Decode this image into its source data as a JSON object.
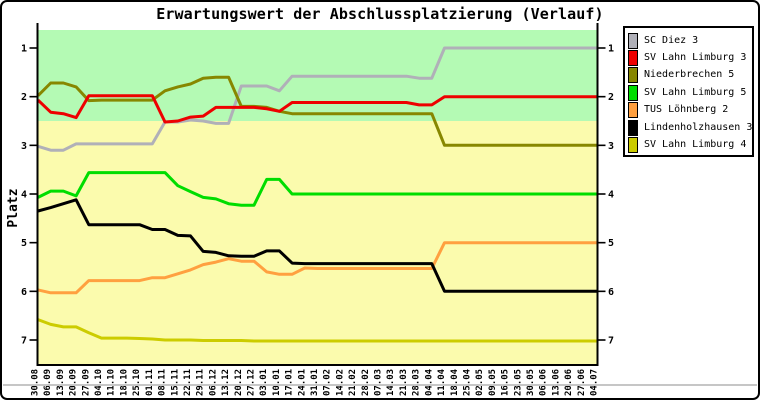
{
  "chart_data": {
    "type": "line",
    "title": "Erwartungswert der Abschlussplatzierung (Verlauf)",
    "ylabel": "Platz",
    "y_ticks": [
      1,
      2,
      3,
      4,
      5,
      6,
      7
    ],
    "y_axis_inverted": true,
    "y_range": [
      0.6,
      7.52
    ],
    "grid": false,
    "legend_position": "right",
    "x_tick_labels": [
      "30.08",
      "06.09",
      "13.09",
      "20.09",
      "27.09",
      "04.10",
      "11.10",
      "18.10",
      "25.10",
      "01.11",
      "08.11",
      "15.11",
      "22.11",
      "29.11",
      "06.12",
      "13.12",
      "20.12",
      "27.12",
      "03.01",
      "10.01",
      "17.01",
      "24.01",
      "31.01",
      "07.02",
      "14.02",
      "21.02",
      "28.02",
      "07.03",
      "14.03",
      "21.03",
      "28.03",
      "04.04",
      "11.04",
      "18.04",
      "25.04",
      "02.05",
      "09.05",
      "16.05",
      "23.05",
      "30.05",
      "06.06",
      "13.06",
      "20.06",
      "27.06",
      "04.07"
    ],
    "bands": [
      {
        "name": "green-zone",
        "from": 0.6,
        "to": 2.5,
        "color": "#B4FAB4"
      },
      {
        "name": "yellow-zone",
        "from": 2.5,
        "to": 7.52,
        "color": "#FBFBAD"
      }
    ],
    "series": [
      {
        "name": "SC Diez 3",
        "color": "#B0B0B8",
        "values": [
          3.02,
          3.1,
          3.1,
          2.97,
          2.97,
          2.97,
          2.97,
          2.97,
          2.97,
          2.97,
          2.52,
          2.52,
          2.48,
          2.5,
          2.55,
          2.55,
          1.78,
          1.78,
          1.78,
          1.88,
          1.58,
          1.58,
          1.58,
          1.58,
          1.58,
          1.58,
          1.58,
          1.58,
          1.58,
          1.58,
          1.62,
          1.62,
          1,
          1,
          1,
          1,
          1,
          1,
          1,
          1,
          1,
          1,
          1,
          1,
          1
        ]
      },
      {
        "name": "SV Lahn Limburg 3",
        "color": "#EE0000",
        "values": [
          2.07,
          2.32,
          2.35,
          2.43,
          1.98,
          1.98,
          1.98,
          1.98,
          1.98,
          1.98,
          2.52,
          2.5,
          2.42,
          2.4,
          2.22,
          2.22,
          2.22,
          2.22,
          2.25,
          2.3,
          2.12,
          2.12,
          2.12,
          2.12,
          2.12,
          2.12,
          2.12,
          2.12,
          2.12,
          2.12,
          2.17,
          2.17,
          2,
          2,
          2,
          2,
          2,
          2,
          2,
          2,
          2,
          2,
          2,
          2,
          2
        ]
      },
      {
        "name": "Niederbrechen 5",
        "color": "#878700",
        "values": [
          1.98,
          1.72,
          1.72,
          1.8,
          2.08,
          2.07,
          2.07,
          2.07,
          2.07,
          2.07,
          1.88,
          1.8,
          1.74,
          1.62,
          1.6,
          1.6,
          2.2,
          2.2,
          2.22,
          2.3,
          2.35,
          2.35,
          2.35,
          2.35,
          2.35,
          2.35,
          2.35,
          2.35,
          2.35,
          2.35,
          2.35,
          2.35,
          3,
          3,
          3,
          3,
          3,
          3,
          3,
          3,
          3,
          3,
          3,
          3,
          3
        ]
      },
      {
        "name": "SV Lahn Limburg 5",
        "color": "#00DD00",
        "values": [
          4.07,
          3.94,
          3.94,
          4.04,
          3.56,
          3.56,
          3.56,
          3.56,
          3.56,
          3.56,
          3.56,
          3.83,
          3.95,
          4.07,
          4.1,
          4.2,
          4.23,
          4.23,
          3.7,
          3.7,
          4,
          4,
          4,
          4,
          4,
          4,
          4,
          4,
          4,
          4,
          4,
          4,
          4,
          4,
          4,
          4,
          4,
          4,
          4,
          4,
          4,
          4,
          4,
          4,
          4
        ]
      },
      {
        "name": "TUS Löhnberg 2",
        "color": "#FFA040",
        "values": [
          5.97,
          6.03,
          6.03,
          6.03,
          5.78,
          5.78,
          5.78,
          5.78,
          5.78,
          5.72,
          5.72,
          5.64,
          5.56,
          5.45,
          5.4,
          5.33,
          5.38,
          5.38,
          5.6,
          5.65,
          5.65,
          5.52,
          5.53,
          5.53,
          5.53,
          5.53,
          5.53,
          5.53,
          5.53,
          5.53,
          5.53,
          5.53,
          5,
          5,
          5,
          5,
          5,
          5,
          5,
          5,
          5,
          5,
          5,
          5,
          5
        ]
      },
      {
        "name": "Lindenholzhausen 3",
        "color": "#000000",
        "values": [
          4.35,
          4.28,
          4.2,
          4.12,
          4.63,
          4.63,
          4.63,
          4.63,
          4.63,
          4.73,
          4.73,
          4.85,
          4.86,
          5.18,
          5.2,
          5.27,
          5.28,
          5.28,
          5.17,
          5.17,
          5.42,
          5.43,
          5.43,
          5.43,
          5.43,
          5.43,
          5.43,
          5.43,
          5.43,
          5.43,
          5.43,
          5.43,
          6,
          6,
          6,
          6,
          6,
          6,
          6,
          6,
          6,
          6,
          6,
          6,
          6
        ]
      },
      {
        "name": "SV Lahn Limburg 4",
        "color": "#CCCC00",
        "values": [
          6.58,
          6.68,
          6.73,
          6.73,
          6.85,
          6.96,
          6.96,
          6.96,
          6.97,
          6.98,
          7,
          7,
          7,
          7.01,
          7.01,
          7.01,
          7.01,
          7.02,
          7.02,
          7.02,
          7.02,
          7.02,
          7.02,
          7.02,
          7.02,
          7.02,
          7.02,
          7.02,
          7.02,
          7.02,
          7.02,
          7.02,
          7.02,
          7.02,
          7.02,
          7.02,
          7.02,
          7.02,
          7.02,
          7.02,
          7.02,
          7.02,
          7.02,
          7.02,
          7.02
        ]
      }
    ]
  }
}
